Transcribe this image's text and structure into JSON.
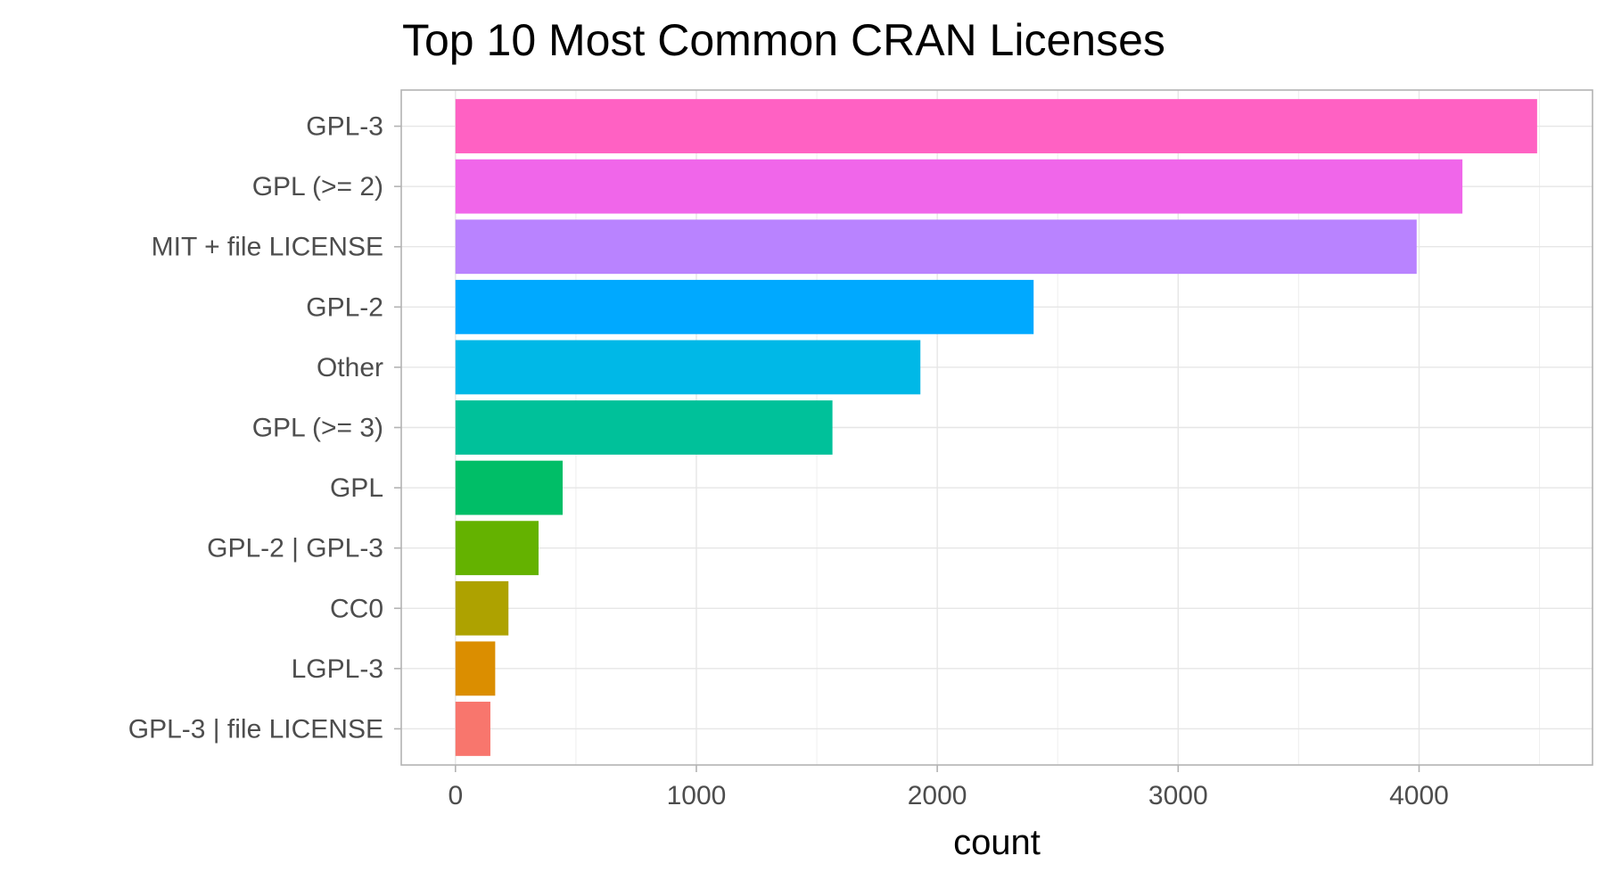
{
  "chart_data": {
    "type": "bar",
    "orientation": "horizontal",
    "title": "Top 10 Most Common CRAN Licenses",
    "xlabel": "count",
    "ylabel": "",
    "xlim": [
      -225,
      4720
    ],
    "x_ticks": [
      0,
      1000,
      2000,
      3000,
      4000
    ],
    "x_ticks_minor": [
      500,
      1500,
      2500,
      3500,
      4500
    ],
    "grid": true,
    "legend": "none",
    "categories": [
      "GPL-3",
      "GPL (>= 2)",
      "MIT + file LICENSE",
      "GPL-2",
      "Other",
      "GPL (>= 3)",
      "GPL",
      "GPL-2 | GPL-3",
      "CC0",
      "LGPL-3",
      "GPL-3 | file LICENSE"
    ],
    "values": [
      4490,
      4180,
      3990,
      2400,
      1930,
      1565,
      445,
      345,
      220,
      165,
      145
    ],
    "colors": [
      "#FF61C3",
      "#F066EA",
      "#B983FF",
      "#00A9FF",
      "#00B8E7",
      "#00C19A",
      "#00BE67",
      "#64B200",
      "#AEA200",
      "#DB8E00",
      "#F8766D"
    ]
  }
}
